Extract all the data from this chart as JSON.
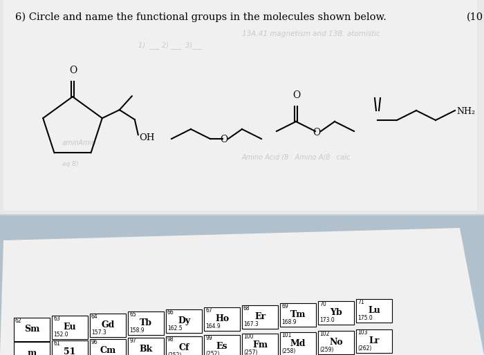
{
  "title": "6) Circle and name the functional groups in the molecules shown below.",
  "points": "(10",
  "bg_top": "#c8d4dc",
  "bg_paper": "#eaeaea",
  "bg_paper2": "#f2f2f2",
  "bg_bottom": "#b8c8d4",
  "pt_paper": "#f5f5f5",
  "periodic_cells_row1": [
    {
      "n": "62",
      "s": "Sm",
      "m": ""
    },
    {
      "n": "63",
      "s": "Eu",
      "m": "152.0"
    },
    {
      "n": "64",
      "s": "Gd",
      "m": "157.3"
    },
    {
      "n": "65",
      "s": "Tb",
      "m": "158.9"
    },
    {
      "n": "66",
      "s": "Dy",
      "m": "162.5"
    },
    {
      "n": "67",
      "s": "Ho",
      "m": "164.9"
    },
    {
      "n": "68",
      "s": "Er",
      "m": "167.3"
    },
    {
      "n": "69",
      "s": "Tm",
      "m": "168.9"
    },
    {
      "n": "70",
      "s": "Yb",
      "m": "173.0"
    },
    {
      "n": "71",
      "s": "Lu",
      "m": "175.0"
    }
  ],
  "periodic_cells_row2": [
    {
      "n": "",
      "s": "m",
      "m": ""
    },
    {
      "n": "61",
      "s": "51",
      "m": ""
    },
    {
      "n": "96",
      "s": "Cm",
      "m": ""
    },
    {
      "n": "97",
      "s": "Bk",
      "m": ""
    },
    {
      "n": "98",
      "s": "Cf",
      "m": "(252)"
    },
    {
      "n": "99",
      "s": "Es",
      "m": "(252)"
    },
    {
      "n": "100",
      "s": "Fm",
      "m": "(257)"
    },
    {
      "n": "101",
      "s": "Md",
      "m": "(258)"
    },
    {
      "n": "102",
      "s": "No",
      "m": "(259)"
    },
    {
      "n": "103",
      "s": "Lr",
      "m": "(262)"
    }
  ]
}
